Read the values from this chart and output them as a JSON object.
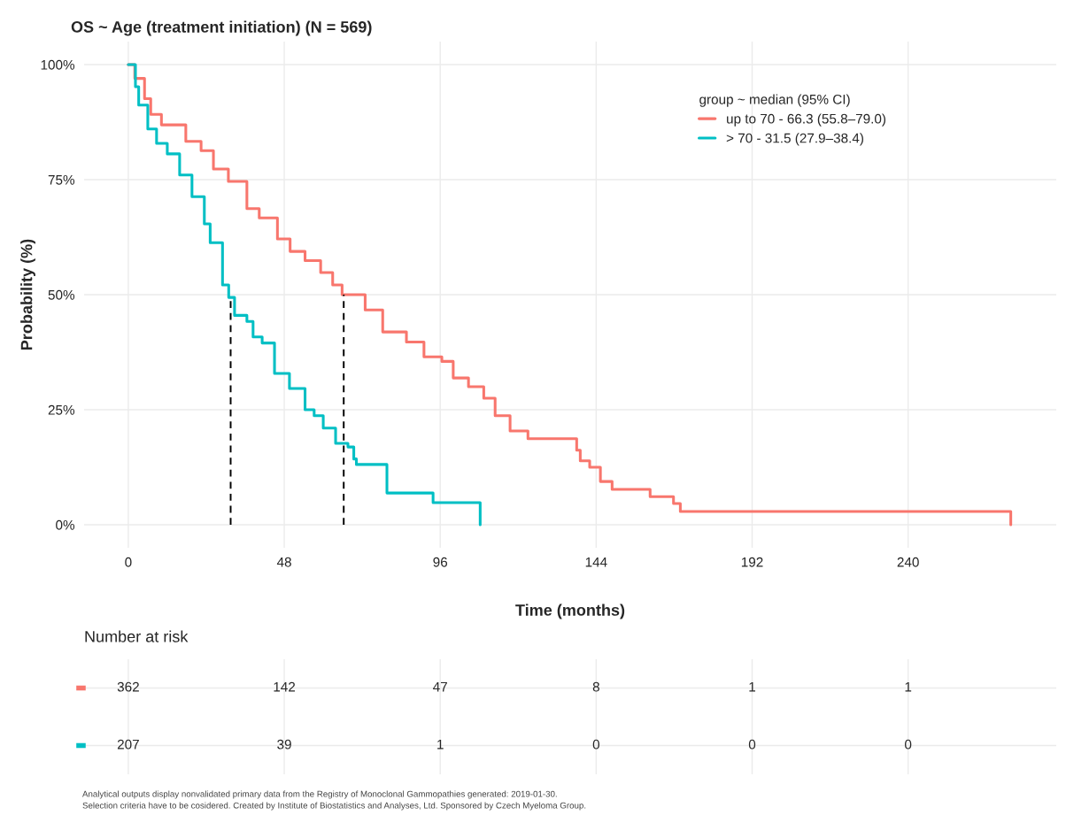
{
  "chart_data": [
    {
      "type": "step",
      "title": "OS ~ Age (treatment initiation) (N = 569)",
      "xlabel": "Time (months)",
      "ylabel": "Probability (%)",
      "legend_title": "group ~ median (95% CI)",
      "legend": "top right",
      "grid": true,
      "xlim": [
        -13.6,
        285.6
      ],
      "ylim": [
        -5,
        105
      ],
      "xticks": [
        0,
        48,
        96,
        144,
        192,
        240
      ],
      "yticks": [
        {
          "value": 0,
          "label": "0%"
        },
        {
          "value": 25,
          "label": "25%"
        },
        {
          "value": 50,
          "label": "50%"
        },
        {
          "value": 75,
          "label": "75%"
        },
        {
          "value": 100,
          "label": "100%"
        }
      ],
      "series": [
        {
          "name": "up to 70 - 66.3 (55.8–79.0)",
          "color": "#f8766d",
          "x": [
            0,
            2,
            5,
            6.9,
            10.2,
            17.7,
            22.4,
            26.2,
            30.8,
            36.5,
            40.3,
            45.9,
            49.8,
            54.4,
            59.2,
            62.9,
            65.8,
            72.9,
            78.3,
            85.6,
            91,
            96.5,
            100,
            104.7,
            109.4,
            112.9,
            117.5,
            123,
            138,
            139.1,
            142,
            145.3,
            148.9,
            160.6,
            167.8,
            169.9,
            271.6
          ],
          "values": [
            100,
            97,
            92.6,
            89.2,
            86.9,
            83.3,
            81.3,
            77.3,
            74.6,
            68.7,
            66.7,
            62.1,
            59.4,
            57.4,
            54.8,
            52.1,
            50,
            46.7,
            41.9,
            39.7,
            36.5,
            35.5,
            31.9,
            30,
            27.5,
            23.7,
            20.4,
            18.7,
            16.2,
            13.9,
            12.5,
            9.4,
            7.7,
            6.1,
            4.6,
            2.9,
            0
          ]
        },
        {
          "name": "> 70 - 31.5 (27.9–38.4)",
          "color": "#00bfc4",
          "x": [
            0,
            2.2,
            3.2,
            6,
            8.7,
            12,
            15.8,
            19.6,
            23.4,
            25.2,
            29,
            30.9,
            32.7,
            36.5,
            38.4,
            41.2,
            45,
            49.6,
            54.4,
            57.2,
            60,
            63.8,
            67.6,
            69.4,
            70.2,
            79.6,
            93.8,
            108.3
          ],
          "values": [
            100,
            95.2,
            91.2,
            86,
            82.9,
            80.6,
            76,
            71.3,
            65.4,
            61.3,
            52.1,
            49.4,
            45.5,
            44.2,
            40.8,
            39.5,
            32.9,
            29.6,
            25,
            23.7,
            21,
            17.7,
            16.9,
            14.3,
            13.1,
            6.9,
            4.8,
            0
          ]
        }
      ],
      "ref_lines": [
        {
          "axis": "x",
          "value": 31.5,
          "line_style": "dashed",
          "color": "#000000"
        },
        {
          "axis": "x",
          "value": 66.3,
          "line_style": "dashed",
          "color": "#000000"
        }
      ]
    },
    {
      "type": "heatmap",
      "title": "Number at risk",
      "categories": [
        null,
        null,
        null,
        null,
        null,
        null
      ],
      "y_categories": [
        null,
        null
      ],
      "data_labels": true,
      "grid": true,
      "cells": [
        [
          362,
          142,
          47,
          8,
          1,
          1
        ],
        [
          207,
          39,
          1,
          0,
          0,
          0
        ]
      ],
      "annotations": [
        "Analytical outputs display nonvalidated primary data from the Registry of Monoclonal Gammopathies generated: 2019-01-30.",
        "Selection criteria have to be cosidered. Created by Institute of Biostatistics and Analyses, Ltd. Sponsored by Czech Myeloma Group."
      ]
    }
  ]
}
